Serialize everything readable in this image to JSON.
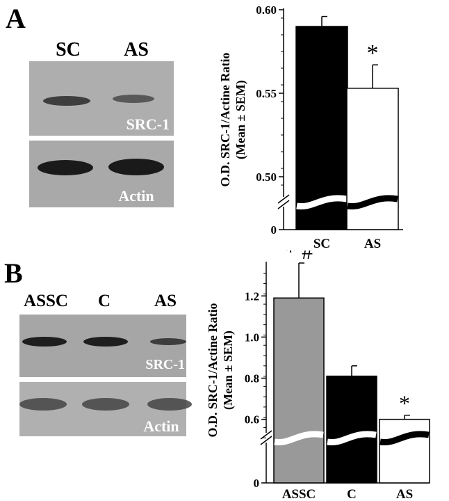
{
  "panel_a": {
    "letter": "A",
    "blot": {
      "lane_labels": [
        "SC",
        "AS"
      ],
      "band_labels": {
        "top": "SRC-1",
        "bottom": "Actin"
      }
    }
  },
  "panel_b": {
    "letter": "B",
    "blot": {
      "lane_labels": [
        "ASSC",
        "C",
        "AS"
      ],
      "band_labels": {
        "top": "SRC-1",
        "bottom": "Actin"
      }
    }
  },
  "chart_data": [
    {
      "panel": "A",
      "type": "bar",
      "ylabel_line1": "O.D. SRC-1/Actine Ratio",
      "ylabel_line2": "(Mean ± SEM)",
      "categories": [
        "SC",
        "AS"
      ],
      "values": [
        0.59,
        0.553
      ],
      "errors": [
        0.006,
        0.014
      ],
      "bar_colors": [
        "#000000",
        "#ffffff"
      ],
      "annotations": [
        "",
        "*"
      ],
      "y_ticks": [
        {
          "value": 0,
          "label": "0"
        },
        {
          "value": 0.5,
          "label": "0.50"
        },
        {
          "value": 0.55,
          "label": "0.55"
        },
        {
          "value": 0.6,
          "label": "0.60"
        }
      ],
      "axis_break": true,
      "ylim": [
        0.485,
        0.6
      ]
    },
    {
      "panel": "B",
      "type": "bar",
      "ylabel_line1": "O.D. SRC-1/Actine Ratio",
      "ylabel_line2": "(Mean ± SEM)",
      "categories": [
        "ASSC",
        "C",
        "AS"
      ],
      "values": [
        1.19,
        0.81,
        0.6
      ],
      "errors": [
        0.17,
        0.05,
        0.02
      ],
      "bar_colors": [
        "#999999",
        "#000000",
        "#ffffff"
      ],
      "annotations": [
        "* #",
        "",
        "*"
      ],
      "y_ticks": [
        {
          "value": 0,
          "label": "0"
        },
        {
          "value": 0.6,
          "label": "0.6"
        },
        {
          "value": 0.8,
          "label": "0.8"
        },
        {
          "value": 1.0,
          "label": "1.0"
        },
        {
          "value": 1.2,
          "label": "1.2"
        }
      ],
      "axis_break": true,
      "ylim": [
        0.46,
        1.36
      ]
    }
  ]
}
